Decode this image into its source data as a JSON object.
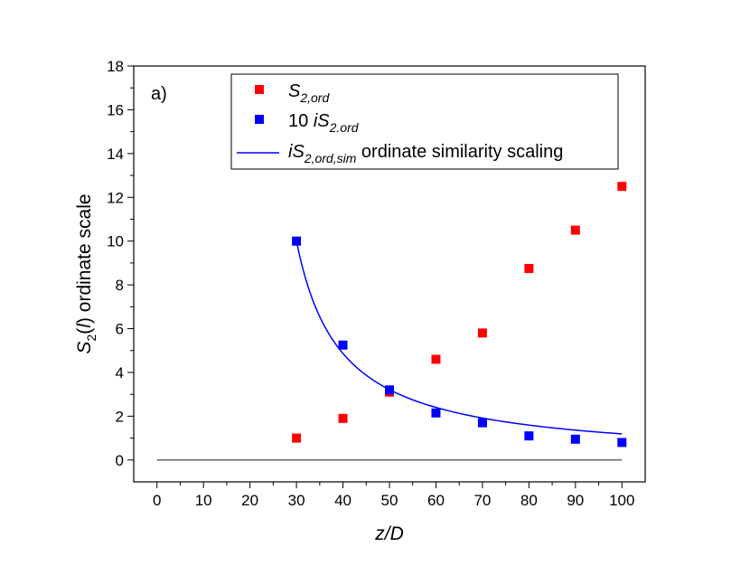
{
  "chart_data": {
    "type": "scatter",
    "panel_label": "a)",
    "xlabel": "z/D",
    "ylabel": {
      "main": "S",
      "sub": "2",
      "paren_open": "(",
      "var": "l",
      "paren_close": ")",
      "rest": " ordinate scale"
    },
    "xlim": [
      -5,
      105
    ],
    "ylim": [
      -1,
      18
    ],
    "xticks": [
      0,
      10,
      20,
      30,
      40,
      50,
      60,
      70,
      80,
      90,
      100
    ],
    "yticks": [
      0,
      2,
      4,
      6,
      8,
      10,
      12,
      14,
      16,
      18
    ],
    "series": [
      {
        "name": "S_2,ord",
        "legend": {
          "prefix": "",
          "main": "S",
          "sub": "2,ord",
          "suffix": ""
        },
        "kind": "markers",
        "color": "#ff0000",
        "x": [
          30,
          40,
          50,
          60,
          70,
          80,
          90,
          100
        ],
        "y": [
          1.0,
          1.9,
          3.1,
          4.6,
          5.8,
          8.75,
          10.5,
          12.5
        ]
      },
      {
        "name": "10 iS_2.ord",
        "legend": {
          "prefix": "10 ",
          "main": "iS",
          "sub": "2.ord",
          "suffix": ""
        },
        "kind": "markers",
        "color": "#0000ff",
        "x": [
          30,
          40,
          50,
          60,
          70,
          80,
          90,
          100
        ],
        "y": [
          10.0,
          5.25,
          3.2,
          2.15,
          1.7,
          1.1,
          0.95,
          0.8
        ]
      },
      {
        "name": "iS_2,ord,sim ordinate similarity scaling",
        "legend": {
          "prefix": "",
          "main": "iS",
          "sub": "2,ord,sim",
          "suffix": " ordinate similarity scaling"
        },
        "kind": "line",
        "color": "#0000ff",
        "formula": "a/(x-x0)",
        "params": {
          "a": 94.8,
          "x0": 20.52
        },
        "domain": [
          30,
          100
        ]
      }
    ],
    "reference_line": {
      "y": 0,
      "x_range": [
        0,
        100
      ],
      "color": "#333333"
    }
  }
}
